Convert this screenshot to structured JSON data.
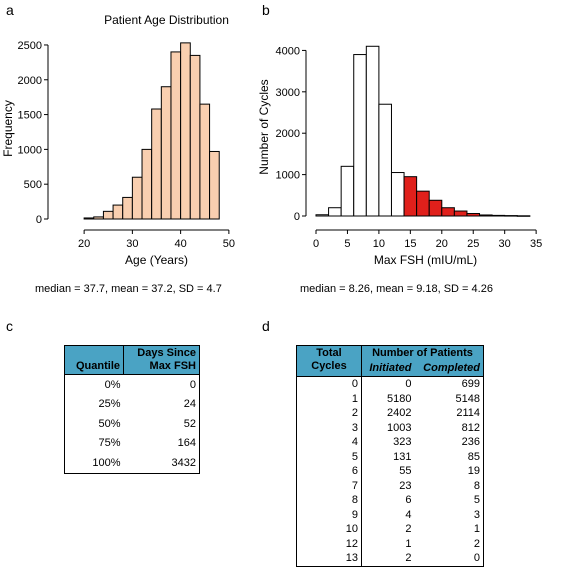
{
  "panels": {
    "a": {
      "letter": "a",
      "summary": "median = 37.7, mean = 37.2, SD = 4.7"
    },
    "b": {
      "letter": "b",
      "summary": "median = 8.26, mean = 9.18, SD = 4.26"
    },
    "c": {
      "letter": "c"
    },
    "d": {
      "letter": "d"
    }
  },
  "colors": {
    "age_fill": "#f9cfb0",
    "fsh_fill": "#ffffff",
    "fsh_highlight": "#e0201b",
    "table_header": "#4aa3c4"
  },
  "chart_data": [
    {
      "type": "bar",
      "title": "Patient Age Distribution",
      "xlabel": "Age (Years)",
      "ylabel": "Frequency",
      "xlim": [
        15,
        55
      ],
      "ylim": [
        0,
        2600
      ],
      "xticks": [
        20,
        30,
        40,
        50
      ],
      "yticks": [
        0,
        500,
        1000,
        1500,
        2000,
        2500
      ],
      "bin_width": 2,
      "bin_starts": [
        20,
        22,
        24,
        26,
        28,
        30,
        32,
        34,
        36,
        38,
        40,
        42,
        44,
        46
      ],
      "values": [
        15,
        30,
        110,
        200,
        310,
        600,
        1000,
        1580,
        1900,
        2400,
        2530,
        2350,
        1650,
        970
      ]
    },
    {
      "type": "bar",
      "xlabel": "Max FSH (mIU/mL)",
      "ylabel": "Number of Cycles",
      "xlim": [
        0,
        38
      ],
      "ylim": [
        0,
        4300
      ],
      "xticks": [
        0,
        5,
        10,
        15,
        20,
        25,
        30,
        35
      ],
      "yticks": [
        0,
        1000,
        2000,
        3000,
        4000
      ],
      "bin_width": 2,
      "bin_starts": [
        0,
        2,
        4,
        6,
        8,
        10,
        12,
        14,
        16,
        18,
        20,
        22,
        24,
        26,
        28,
        30,
        32
      ],
      "values": [
        30,
        200,
        1200,
        3900,
        4100,
        2700,
        1050,
        950,
        600,
        380,
        200,
        120,
        60,
        25,
        15,
        10,
        5
      ],
      "highlighted_from": 14
    }
  ],
  "quantile_table": {
    "headers": {
      "col1": "Quantile",
      "col2_line1": "Days Since",
      "col2_line2": "Max FSH"
    },
    "rows": [
      {
        "q": "0%",
        "days": "0"
      },
      {
        "q": "25%",
        "days": "24"
      },
      {
        "q": "50%",
        "days": "52"
      },
      {
        "q": "75%",
        "days": "164"
      },
      {
        "q": "100%",
        "days": "3432"
      }
    ]
  },
  "cycles_table": {
    "headers": {
      "col1_line1": "Total",
      "col1_line2": "Cycles",
      "group": "Number of Patients",
      "initiated": "Initiated",
      "completed": "Completed"
    },
    "rows": [
      {
        "cycles": "0",
        "initiated": "0",
        "completed": "699"
      },
      {
        "cycles": "1",
        "initiated": "5180",
        "completed": "5148"
      },
      {
        "cycles": "2",
        "initiated": "2402",
        "completed": "2114"
      },
      {
        "cycles": "3",
        "initiated": "1003",
        "completed": "812"
      },
      {
        "cycles": "4",
        "initiated": "323",
        "completed": "236"
      },
      {
        "cycles": "5",
        "initiated": "131",
        "completed": "85"
      },
      {
        "cycles": "6",
        "initiated": "55",
        "completed": "19"
      },
      {
        "cycles": "7",
        "initiated": "23",
        "completed": "8"
      },
      {
        "cycles": "8",
        "initiated": "6",
        "completed": "5"
      },
      {
        "cycles": "9",
        "initiated": "4",
        "completed": "3"
      },
      {
        "cycles": "10",
        "initiated": "2",
        "completed": "1"
      },
      {
        "cycles": "12",
        "initiated": "1",
        "completed": "2"
      },
      {
        "cycles": "13",
        "initiated": "2",
        "completed": "0"
      }
    ]
  }
}
